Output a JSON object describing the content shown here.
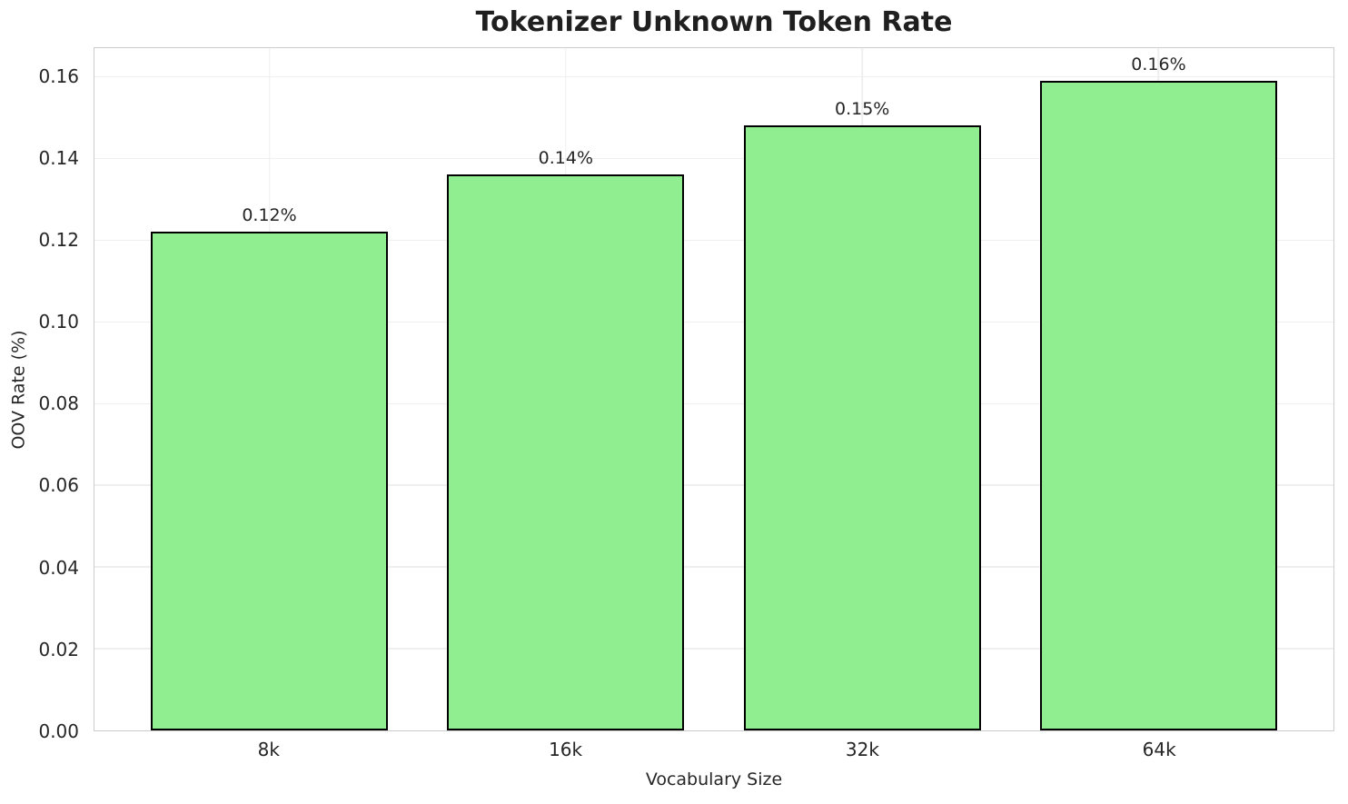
{
  "chart_data": {
    "type": "bar",
    "title": "Tokenizer Unknown Token Rate",
    "xlabel": "Vocabulary Size",
    "ylabel": "OOV Rate (%)",
    "categories": [
      "8k",
      "16k",
      "32k",
      "64k"
    ],
    "values": [
      0.122,
      0.136,
      0.148,
      0.159
    ],
    "bar_labels": [
      "0.12%",
      "0.14%",
      "0.15%",
      "0.16%"
    ],
    "yticks": [
      0.0,
      0.02,
      0.04,
      0.06,
      0.08,
      0.1,
      0.12,
      0.14,
      0.16
    ],
    "ytick_labels": [
      "0.00",
      "0.02",
      "0.04",
      "0.06",
      "0.08",
      "0.10",
      "0.12",
      "0.14",
      "0.16"
    ],
    "ylim": [
      0,
      0.167
    ],
    "bar_width_units": 0.8,
    "grid": true,
    "legend_position": "none",
    "colors": {
      "bar_fill": "#90ee90",
      "bar_edge": "#000000",
      "grid": "#efefef",
      "spine": "#cccccc",
      "text": "#262626",
      "title": "#1f1f1f",
      "background": "#ffffff"
    }
  }
}
